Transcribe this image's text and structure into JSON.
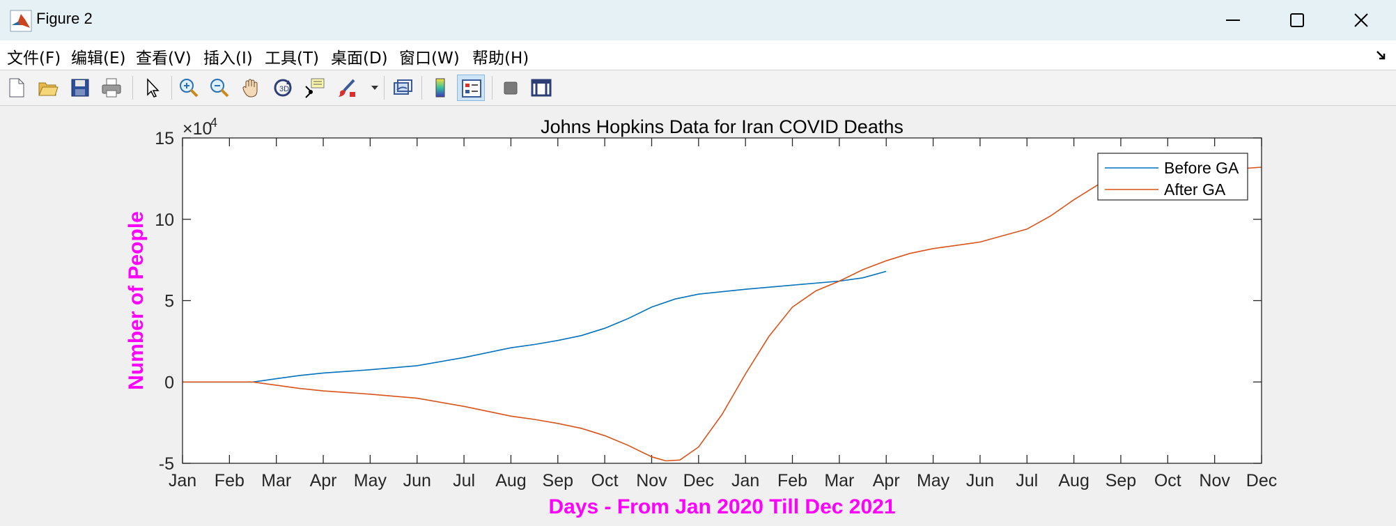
{
  "window": {
    "title": "Figure 2"
  },
  "menu": {
    "items": [
      "文件(F)",
      "编辑(E)",
      "查看(V)",
      "插入(I)",
      "工具(T)",
      "桌面(D)",
      "窗口(W)",
      "帮助(H)"
    ]
  },
  "toolbar": {
    "buttons": [
      "new-figure",
      "open-file",
      "save",
      "print",
      "edit-plot",
      "zoom-in",
      "zoom-out",
      "pan",
      "rotate-3d",
      "data-cursor",
      "brush",
      "link-plot",
      "colorbar",
      "legend",
      "hide-plot-tools",
      "show-plot-tools"
    ],
    "active": "legend"
  },
  "colors": {
    "before": "#0072bd",
    "after": "#d95319",
    "axis_titles": "#ff00ff"
  },
  "chart_data": {
    "type": "line",
    "title": "Johns Hopkins Data for Iran COVID Deaths",
    "xlabel": "Days - From Jan 2020 Till Dec 2021",
    "ylabel": "Number of People",
    "y_multiplier_label": "×10",
    "y_multiplier_exponent": "4",
    "xlim": [
      0,
      23
    ],
    "ylim": [
      -5,
      15
    ],
    "xticks": [
      "Jan",
      "Feb",
      "Mar",
      "Apr",
      "May",
      "Jun",
      "Jul",
      "Aug",
      "Sep",
      "Oct",
      "Nov",
      "Dec",
      "Jan",
      "Feb",
      "Mar",
      "Apr",
      "May",
      "Jun",
      "Jul",
      "Aug",
      "Sep",
      "Oct",
      "Nov",
      "Dec"
    ],
    "yticks": [
      -5,
      0,
      5,
      10,
      15
    ],
    "legend": {
      "position": "top-right",
      "entries": [
        "Before GA",
        "After GA"
      ]
    },
    "series": [
      {
        "name": "Before GA",
        "x": [
          0,
          1,
          1.5,
          2,
          2.5,
          3,
          3.5,
          4,
          5,
          6,
          7,
          7.5,
          8,
          8.5,
          9,
          9.5,
          10,
          10.5,
          11,
          12,
          13,
          14,
          14.5,
          15
        ],
        "y": [
          0,
          0,
          0,
          0.2,
          0.4,
          0.55,
          0.65,
          0.75,
          1.0,
          1.5,
          2.1,
          2.3,
          2.55,
          2.85,
          3.3,
          3.9,
          4.6,
          5.1,
          5.4,
          5.7,
          5.95,
          6.2,
          6.4,
          6.8
        ]
      },
      {
        "name": "After GA",
        "x": [
          0,
          1,
          1.5,
          2,
          2.5,
          3,
          3.5,
          4,
          5,
          6,
          7,
          7.5,
          8,
          8.5,
          9,
          9.5,
          10,
          10.3,
          10.6,
          11,
          11.5,
          12,
          12.5,
          13,
          13.5,
          14,
          14.5,
          15,
          15.5,
          16,
          17,
          18,
          18.5,
          19,
          19.5,
          20,
          20.5,
          21,
          21.5,
          22,
          22.5,
          23
        ],
        "y": [
          0,
          0,
          0,
          -0.2,
          -0.4,
          -0.55,
          -0.65,
          -0.75,
          -1.0,
          -1.5,
          -2.1,
          -2.3,
          -2.55,
          -2.85,
          -3.3,
          -3.9,
          -4.6,
          -4.85,
          -4.8,
          -4.0,
          -2.0,
          0.5,
          2.8,
          4.6,
          5.6,
          6.2,
          6.9,
          7.45,
          7.9,
          8.2,
          8.6,
          9.4,
          10.2,
          11.2,
          12.1,
          12.6,
          12.8,
          12.9,
          13.0,
          13.05,
          13.1,
          13.2
        ]
      }
    ]
  }
}
